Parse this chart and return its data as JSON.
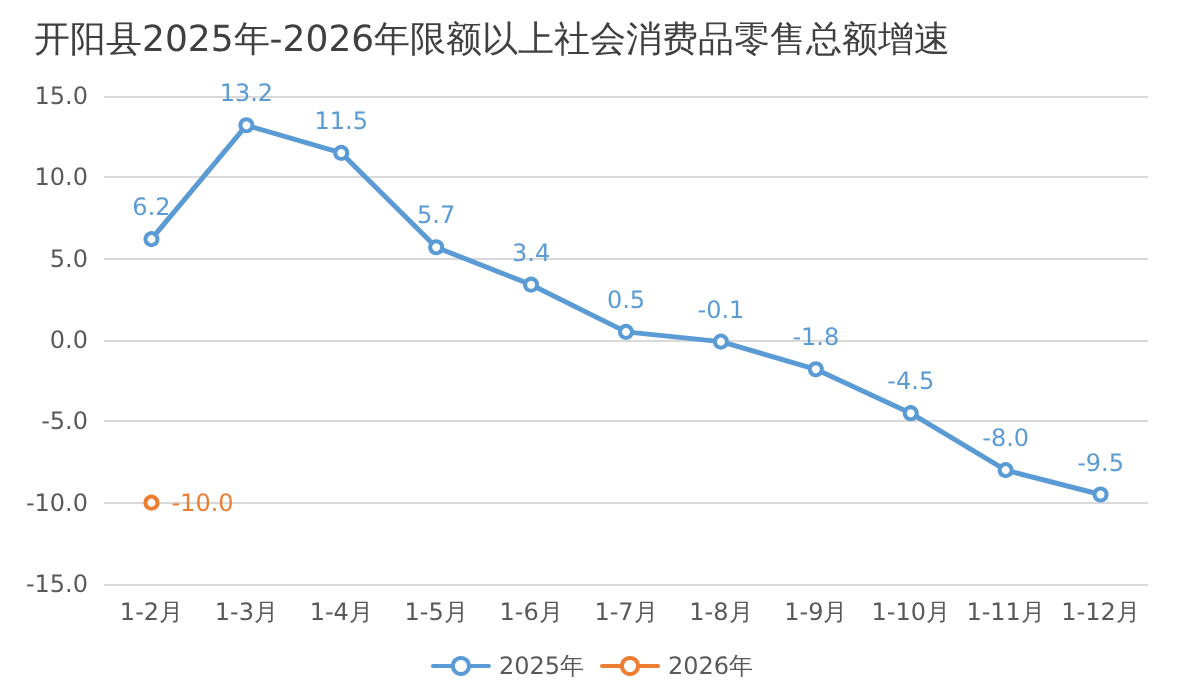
{
  "chart_data": {
    "type": "line",
    "title": "开阳县2025年-2026年限额以上社会消费品零售总额增速",
    "categories": [
      "1-2月",
      "1-3月",
      "1-4月",
      "1-5月",
      "1-6月",
      "1-7月",
      "1-8月",
      "1-9月",
      "1-10月",
      "1-11月",
      "1-12月"
    ],
    "series": [
      {
        "name": "2025年",
        "color": "#5b9bd5",
        "values": [
          6.2,
          13.2,
          11.5,
          5.7,
          3.4,
          0.5,
          -0.1,
          -1.8,
          -4.5,
          -8.0,
          -9.5
        ],
        "value_labels": [
          "6.2",
          "13.2",
          "11.5",
          "5.7",
          "3.4",
          "0.5",
          "-0.1",
          "-1.8",
          "-4.5",
          "-8.0",
          "-9.5"
        ]
      },
      {
        "name": "2026年",
        "color": "#ed7d31",
        "values": [
          -10.0,
          null,
          null,
          null,
          null,
          null,
          null,
          null,
          null,
          null,
          null
        ],
        "value_labels": [
          "-10.0",
          null,
          null,
          null,
          null,
          null,
          null,
          null,
          null,
          null,
          null
        ]
      }
    ],
    "ylim": [
      -15,
      15
    ],
    "yticks": [
      {
        "value": -15,
        "label": "-15.0"
      },
      {
        "value": -10,
        "label": "-10.0"
      },
      {
        "value": -5,
        "label": "-5.0"
      },
      {
        "value": 0,
        "label": "0.0"
      },
      {
        "value": 5,
        "label": "5.0"
      },
      {
        "value": 10,
        "label": "10.0"
      },
      {
        "value": 15,
        "label": "15.0"
      }
    ],
    "grid": "y",
    "legend": "bottom",
    "marker": "circle",
    "line_style": "solid"
  }
}
